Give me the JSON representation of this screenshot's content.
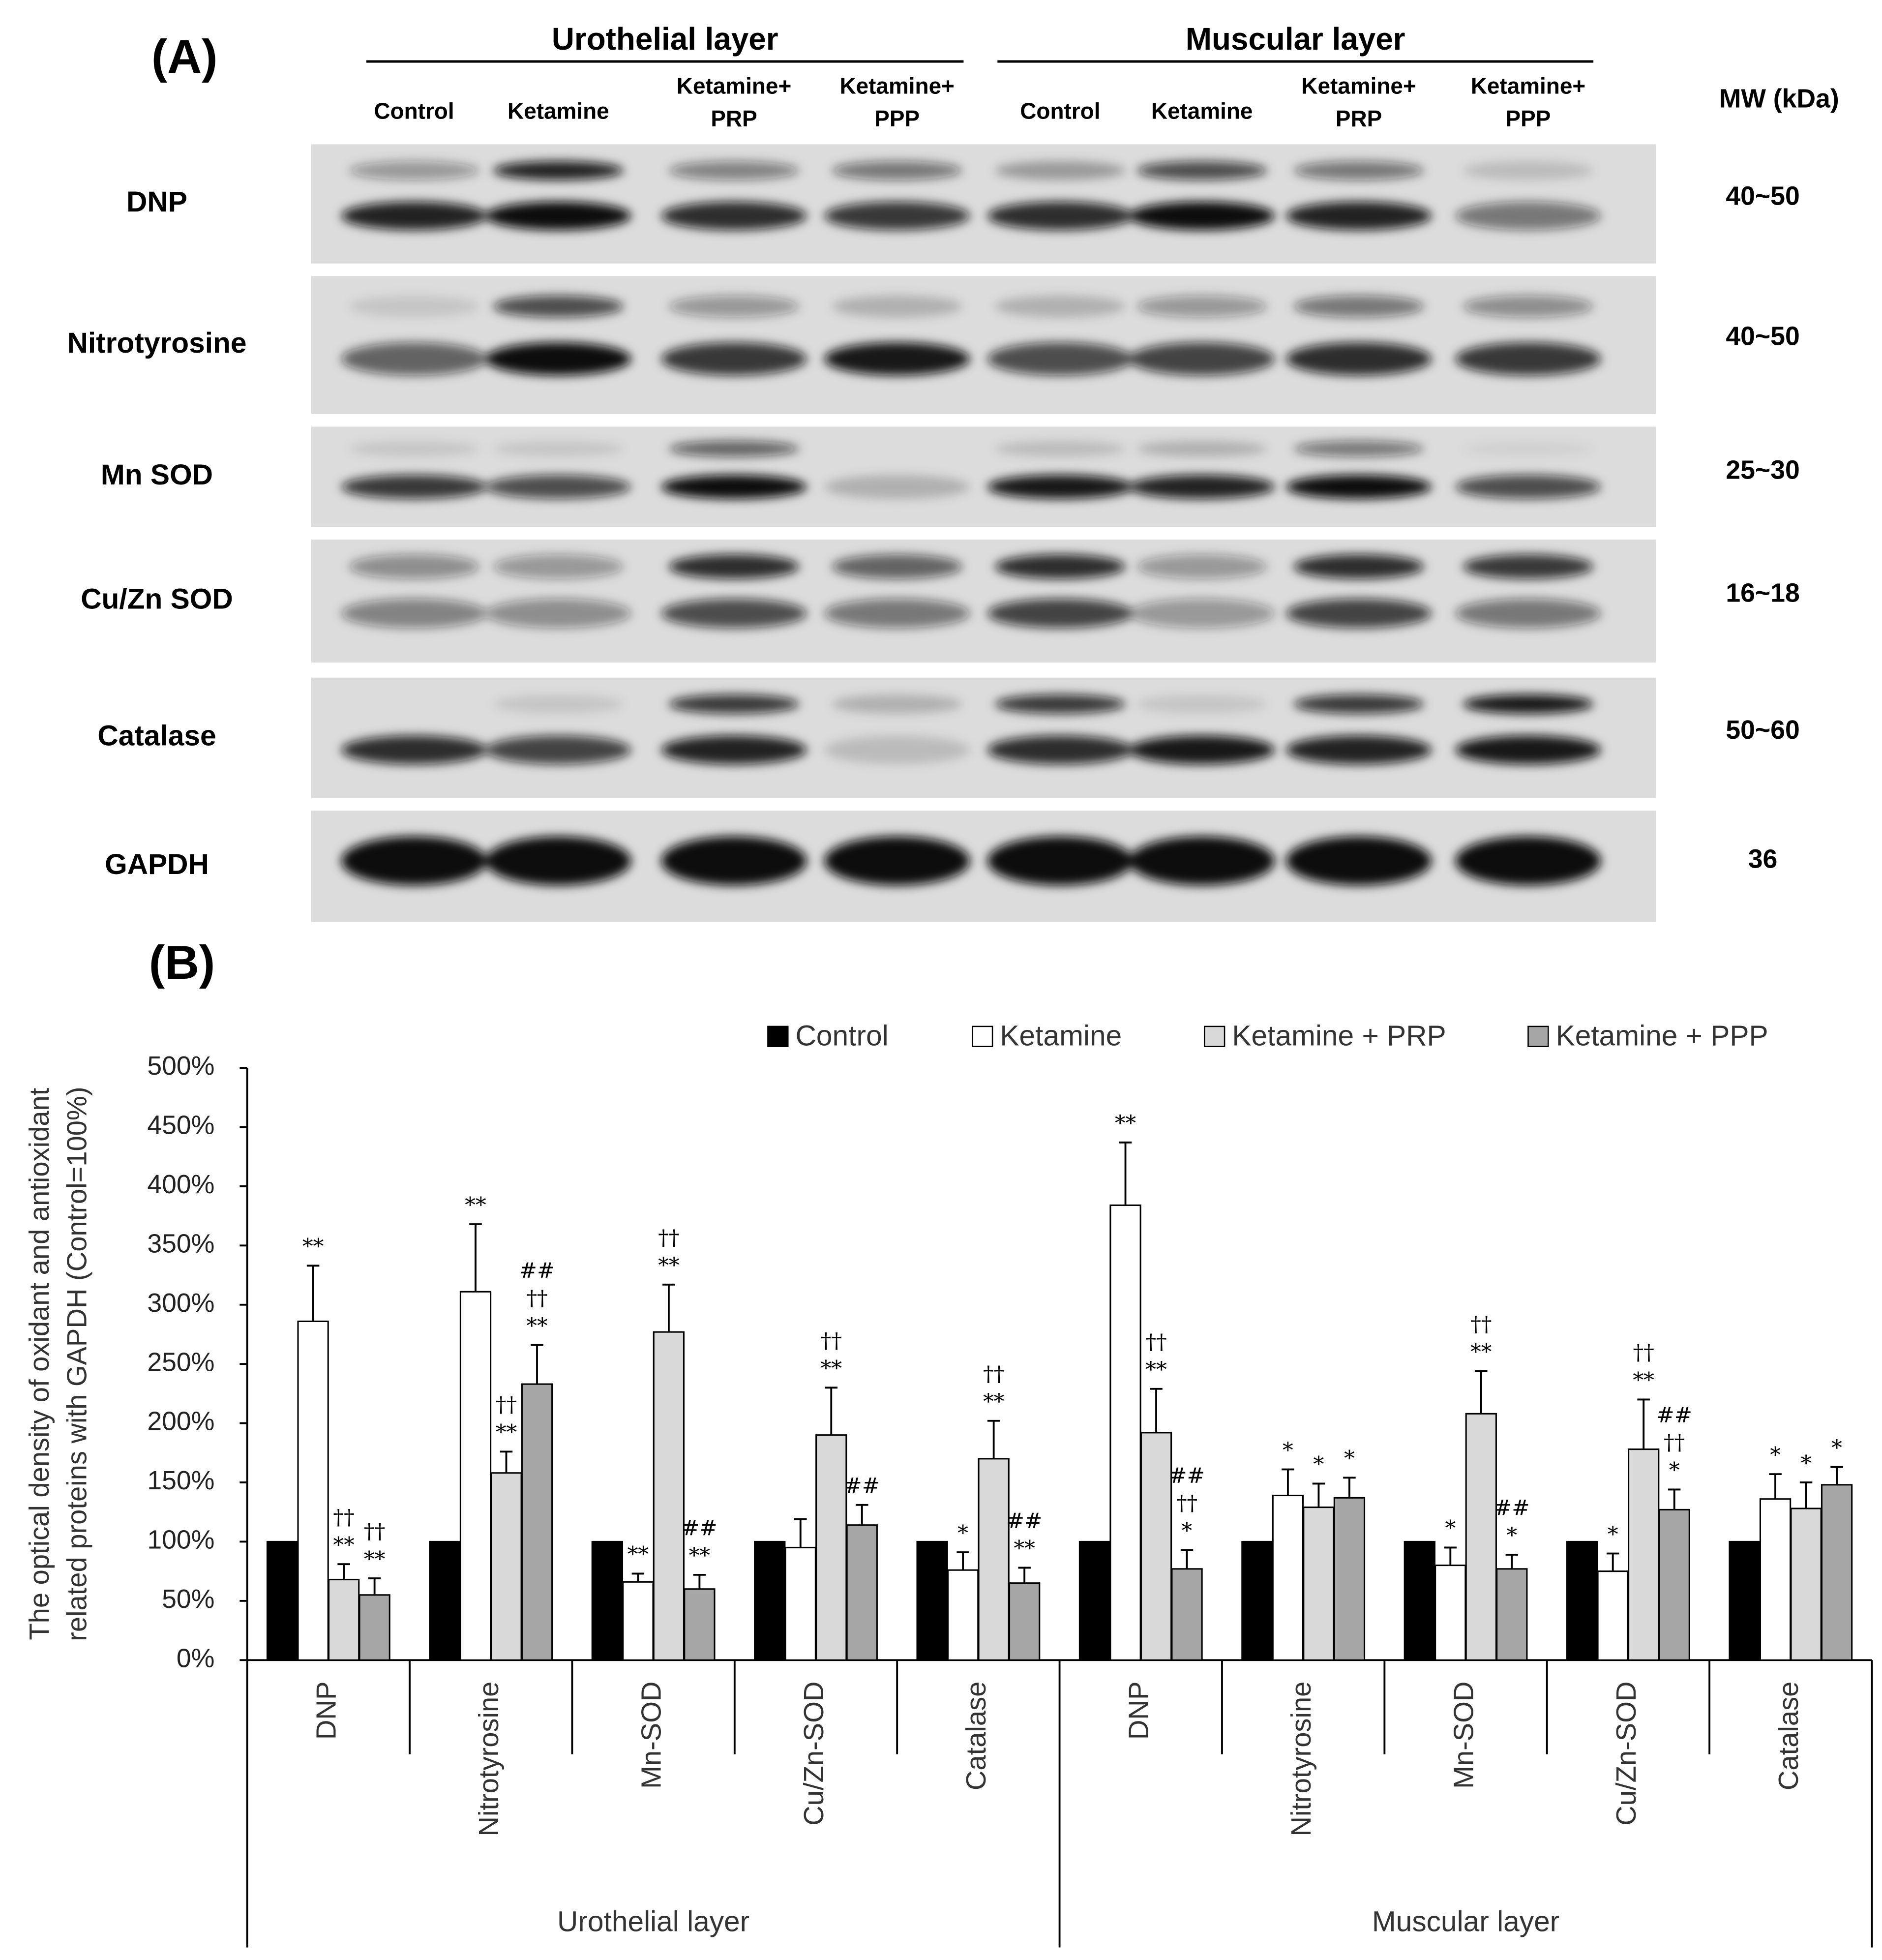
{
  "panel_a": {
    "label": "(A)",
    "mw_header": "MW (kDa)",
    "groups": [
      {
        "name": "Urothelial layer",
        "lanes": [
          [
            "Control"
          ],
          [
            "Ketamine"
          ],
          [
            "Ketamine+",
            "PRP"
          ],
          [
            "Ketamine+",
            "PPP"
          ]
        ]
      },
      {
        "name": "Muscular layer",
        "lanes": [
          [
            "Control"
          ],
          [
            "Ketamine"
          ],
          [
            "Ketamine+",
            "PRP"
          ],
          [
            "Ketamine+",
            "PPP"
          ]
        ]
      }
    ],
    "rows": [
      {
        "protein": "DNP",
        "mw": "40~50"
      },
      {
        "protein": "Nitrotyrosine",
        "mw": "40~50"
      },
      {
        "protein": "Mn SOD",
        "mw": "25~30"
      },
      {
        "protein": "Cu/Zn SOD",
        "mw": "16~18"
      },
      {
        "protein": "Catalase",
        "mw": "50~60"
      },
      {
        "protein": "GAPDH",
        "mw": "36"
      }
    ]
  },
  "chart_data": {
    "type": "bar",
    "panel_label": "(B)",
    "y_label": [
      "The optical density of oxidant and antioxidant",
      "related proteins with GAPDH (Control=100%)"
    ],
    "categories": [
      "DNP",
      "Nitrotyrosine",
      "Mn-SOD",
      "Cu/Zn-SOD",
      "Catalase",
      "DNP",
      "Nitrotyrosine",
      "Mn-SOD",
      "Cu/Zn-SOD",
      "Catalase"
    ],
    "groups": [
      {
        "name": "Urothelial layer",
        "span": [
          0,
          4
        ]
      },
      {
        "name": "Muscular layer",
        "span": [
          5,
          9
        ]
      }
    ],
    "ylim": [
      0,
      500
    ],
    "yticks": [
      {
        "value": 0,
        "label": "0%"
      },
      {
        "value": 50,
        "label": "50%"
      },
      {
        "value": 100,
        "label": "100%"
      },
      {
        "value": 150,
        "label": "150%"
      },
      {
        "value": 200,
        "label": "200%"
      },
      {
        "value": 250,
        "label": "250%"
      },
      {
        "value": 300,
        "label": "300%"
      },
      {
        "value": 350,
        "label": "350%"
      },
      {
        "value": 400,
        "label": "400%"
      },
      {
        "value": 450,
        "label": "450%"
      },
      {
        "value": 500,
        "label": "500%"
      }
    ],
    "series": [
      {
        "name": "Control",
        "color": "#000000",
        "values": [
          100,
          100,
          100,
          100,
          100,
          100,
          100,
          100,
          100,
          100
        ]
      },
      {
        "name": "Ketamine",
        "color": "#ffffff",
        "values": [
          286,
          311,
          66,
          95,
          76,
          384,
          139,
          80,
          75,
          136
        ],
        "errors": [
          47,
          57,
          7,
          24,
          15,
          53,
          22,
          15,
          15,
          21
        ],
        "annotations": [
          [
            "**"
          ],
          [
            "**"
          ],
          [
            "**"
          ],
          null,
          [
            "*"
          ],
          [
            "**"
          ],
          [
            "*"
          ],
          [
            "*"
          ],
          [
            "*"
          ],
          [
            "*"
          ]
        ]
      },
      {
        "name": "Ketamine + PRP",
        "color": "#d9d9d9",
        "values": [
          68,
          158,
          277,
          190,
          170,
          192,
          129,
          208,
          178,
          128
        ],
        "errors": [
          13,
          18,
          40,
          40,
          32,
          37,
          20,
          36,
          42,
          22
        ],
        "annotations": [
          [
            "††",
            "**"
          ],
          [
            "††",
            "**"
          ],
          [
            "††",
            "**"
          ],
          [
            "††",
            "**"
          ],
          [
            "††",
            "**"
          ],
          [
            "††",
            "**"
          ],
          [
            "*"
          ],
          [
            "††",
            "**"
          ],
          [
            "††",
            "**"
          ],
          [
            "*"
          ]
        ]
      },
      {
        "name": "Ketamine + PPP",
        "color": "#a6a6a6",
        "values": [
          55,
          233,
          60,
          114,
          65,
          77,
          137,
          77,
          127,
          148
        ],
        "errors": [
          14,
          33,
          12,
          17,
          13,
          16,
          17,
          12,
          17,
          15
        ],
        "annotations": [
          [
            "††",
            "**"
          ],
          [
            "##",
            "††",
            "**"
          ],
          [
            "##",
            "**"
          ],
          [
            "##"
          ],
          [
            "##",
            "**"
          ],
          [
            "##",
            "††",
            "*"
          ],
          [
            "*"
          ],
          [
            "##",
            "*"
          ],
          [
            "##",
            "††",
            "*"
          ],
          [
            "*"
          ]
        ]
      }
    ]
  }
}
